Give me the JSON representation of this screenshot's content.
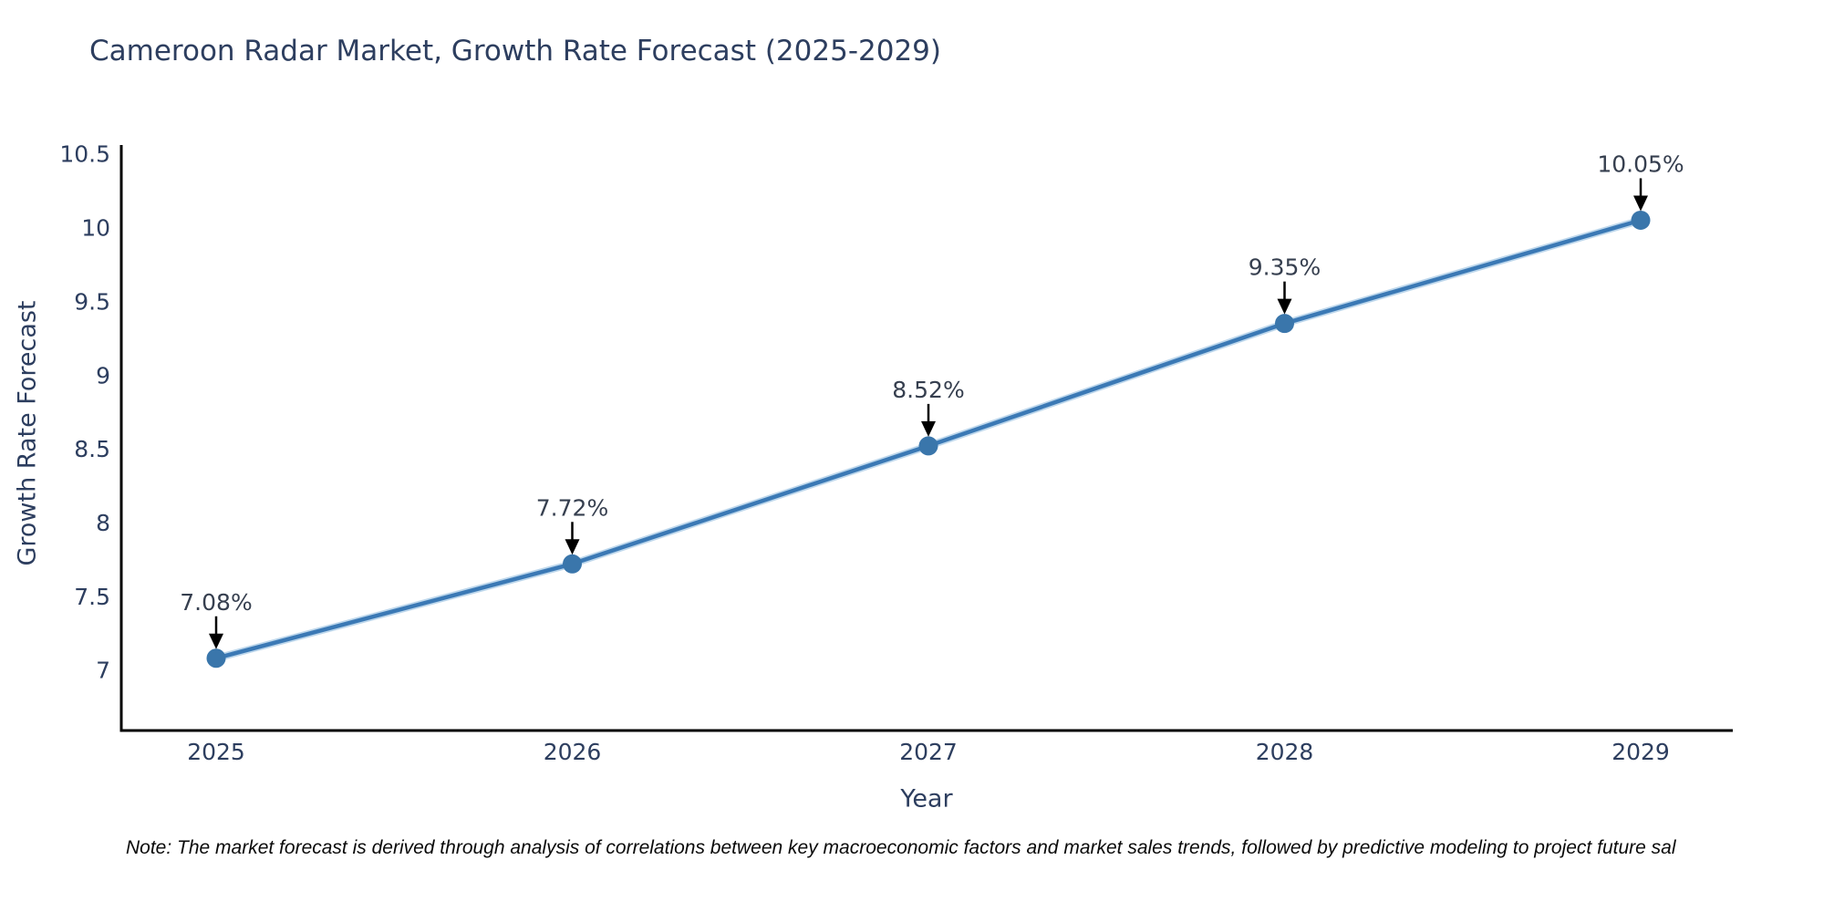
{
  "title": "Cameroon Radar Market, Growth Rate Forecast (2025-2029)",
  "note": "Note: The market forecast is derived through analysis of correlations between key macroeconomic factors and market sales trends, followed by predictive modeling to project future sal",
  "chart_data": {
    "type": "line",
    "title": "Cameroon Radar Market, Growth Rate Forecast (2025-2029)",
    "xlabel": "Year",
    "ylabel": "Growth Rate Forecast",
    "categories": [
      2025,
      2026,
      2027,
      2028,
      2029
    ],
    "values": [
      7.08,
      7.72,
      8.52,
      9.35,
      10.05
    ],
    "point_labels": [
      "7.08%",
      "7.72%",
      "8.52%",
      "9.35%",
      "10.05%"
    ],
    "x_tick_labels": [
      "2025",
      "2026",
      "2027",
      "2028",
      "2029"
    ],
    "y_tick_values": [
      7,
      7.5,
      8,
      8.5,
      9,
      9.5,
      10,
      10.5
    ],
    "y_tick_labels": [
      "7",
      "7.5",
      "8",
      "8.5",
      "9",
      "9.5",
      "10",
      "10.5"
    ],
    "ylim": [
      6.59,
      10.56
    ],
    "grid": false,
    "legend": "none",
    "colors": {
      "line": "#3b79b5",
      "line_halo": "#bdd7ec",
      "marker": "#3a76ab",
      "axis": "#000000",
      "tick_text": "#2d3e5f",
      "annotation_text": "#363f4f",
      "annotation_arrow": "#000000",
      "title_text": "#2d3e5f",
      "background": "#ffffff"
    }
  }
}
